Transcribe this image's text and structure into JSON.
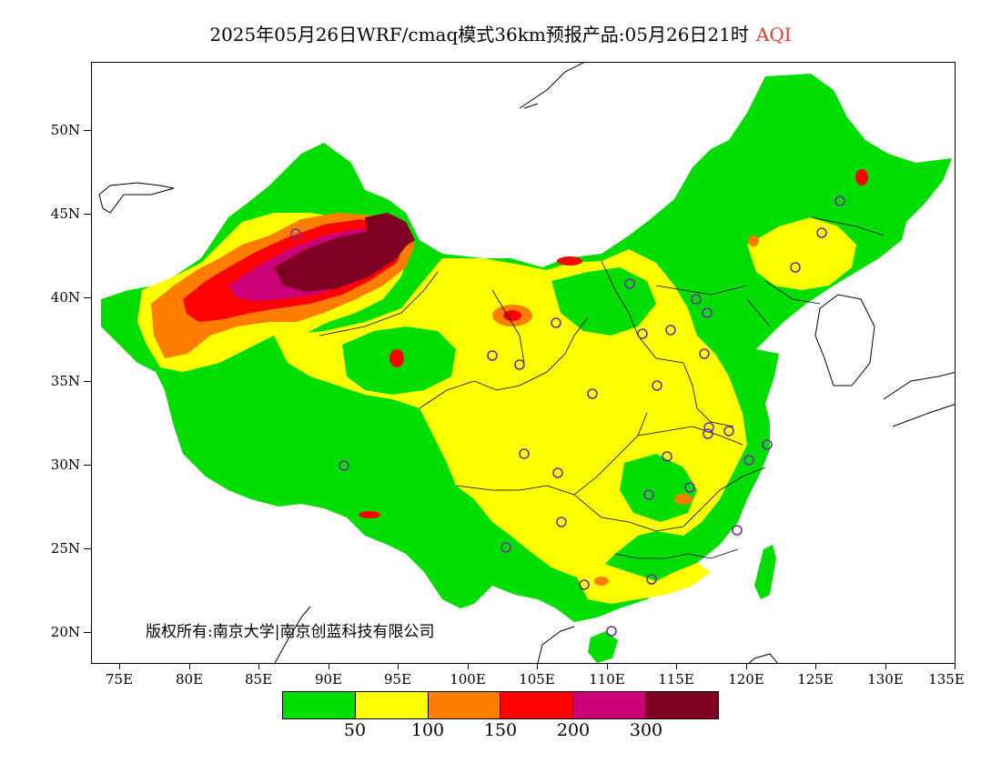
{
  "title": {
    "main": "2025年05月26日WRF/cmaq模式36km预报产品:05月26日21时",
    "product": "AQI"
  },
  "axes": {
    "y_labels": [
      "50N",
      "45N",
      "40N",
      "35N",
      "30N",
      "25N",
      "20N"
    ],
    "x_labels": [
      "75E",
      "80E",
      "85E",
      "90E",
      "95E",
      "100E",
      "105E",
      "110E",
      "115E",
      "120E",
      "125E",
      "130E",
      "135E"
    ]
  },
  "copyright": "版权所有:南京大学|南京创蓝科技有限公司",
  "legend": {
    "colors": [
      "#00dd00",
      "#ffff00",
      "#ff7e00",
      "#ff0000",
      "#cc0077",
      "#7e0023"
    ],
    "thresholds": [
      "50",
      "100",
      "150",
      "200",
      "300"
    ]
  },
  "stations": {
    "marker_color": "#7030a0",
    "count": 32
  }
}
